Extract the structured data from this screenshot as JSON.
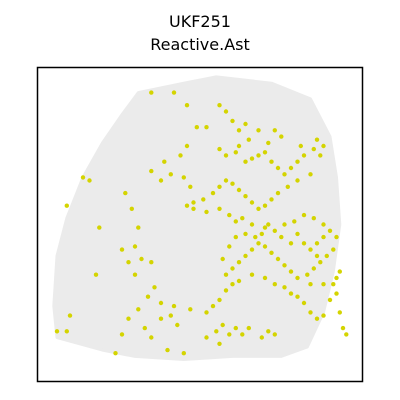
{
  "title_line1": "UKF251",
  "title_line2": "Reactive.Ast",
  "colors": {
    "background_spot": "#ebebeb",
    "highlight_spot": "#d4d400",
    "frame": "#000000"
  },
  "chart_data": {
    "type": "scatter",
    "title": "UKF251\nReactive.Ast",
    "xlabel": "",
    "ylabel": "",
    "xlim": [
      0,
      100
    ],
    "ylim": [
      0,
      100
    ],
    "axes_visible": false,
    "grid": false,
    "legend": "none",
    "background_tissue_polygon": [
      [
        31,
        92
      ],
      [
        45,
        95
      ],
      [
        55,
        97
      ],
      [
        72,
        95
      ],
      [
        84,
        90
      ],
      [
        90,
        78
      ],
      [
        92,
        65
      ],
      [
        93,
        50
      ],
      [
        91,
        35
      ],
      [
        88,
        22
      ],
      [
        83,
        11
      ],
      [
        75,
        8
      ],
      [
        60,
        8
      ],
      [
        45,
        7
      ],
      [
        30,
        8
      ],
      [
        20,
        10
      ],
      [
        6,
        14
      ],
      [
        5,
        24
      ],
      [
        6,
        40
      ],
      [
        9,
        52
      ],
      [
        14,
        65
      ],
      [
        20,
        76
      ],
      [
        26,
        85
      ],
      [
        31,
        92
      ]
    ],
    "series": [
      {
        "name": "",
        "points": [
          [
            35,
            92
          ],
          [
            42,
            92
          ],
          [
            46,
            88
          ],
          [
            56,
            88
          ],
          [
            58,
            86
          ],
          [
            49,
            81
          ],
          [
            52,
            81
          ],
          [
            60,
            83
          ],
          [
            62,
            80
          ],
          [
            64,
            82
          ],
          [
            68,
            80
          ],
          [
            73,
            80
          ],
          [
            75,
            78
          ],
          [
            71,
            76
          ],
          [
            65,
            77
          ],
          [
            62,
            75
          ],
          [
            56,
            74
          ],
          [
            58,
            72
          ],
          [
            61,
            73
          ],
          [
            64,
            70
          ],
          [
            66,
            71
          ],
          [
            68,
            72
          ],
          [
            70,
            73
          ],
          [
            72,
            70
          ],
          [
            74,
            68
          ],
          [
            76,
            66
          ],
          [
            78,
            68
          ],
          [
            80,
            70
          ],
          [
            82,
            72
          ],
          [
            81,
            75
          ],
          [
            85,
            74
          ],
          [
            86,
            77
          ],
          [
            88,
            75
          ],
          [
            87,
            72
          ],
          [
            84,
            66
          ],
          [
            80,
            64
          ],
          [
            77,
            62
          ],
          [
            74,
            60
          ],
          [
            72,
            58
          ],
          [
            70,
            56
          ],
          [
            68,
            55
          ],
          [
            66,
            57
          ],
          [
            64,
            59
          ],
          [
            62,
            61
          ],
          [
            60,
            63
          ],
          [
            58,
            64
          ],
          [
            56,
            62
          ],
          [
            54,
            60
          ],
          [
            51,
            58
          ],
          [
            48,
            57
          ],
          [
            46,
            56
          ],
          [
            47,
            62
          ],
          [
            45,
            65
          ],
          [
            41,
            66
          ],
          [
            38,
            64
          ],
          [
            35,
            67
          ],
          [
            39,
            70
          ],
          [
            44,
            72
          ],
          [
            46,
            75
          ],
          [
            48,
            55
          ],
          [
            52,
            54
          ],
          [
            56,
            55
          ],
          [
            59,
            53
          ],
          [
            61,
            51
          ],
          [
            63,
            52
          ],
          [
            66,
            50
          ],
          [
            70,
            49
          ],
          [
            73,
            48
          ],
          [
            76,
            50
          ],
          [
            79,
            51
          ],
          [
            82,
            53
          ],
          [
            85,
            52
          ],
          [
            88,
            50
          ],
          [
            90,
            48
          ],
          [
            92,
            46
          ],
          [
            91,
            42
          ],
          [
            89,
            40
          ],
          [
            87,
            38
          ],
          [
            85,
            36
          ],
          [
            83,
            34
          ],
          [
            80,
            33
          ],
          [
            78,
            35
          ],
          [
            76,
            37
          ],
          [
            74,
            39
          ],
          [
            72,
            41
          ],
          [
            70,
            43
          ],
          [
            68,
            44
          ],
          [
            66,
            42
          ],
          [
            64,
            40
          ],
          [
            62,
            38
          ],
          [
            60,
            36
          ],
          [
            58,
            34
          ],
          [
            57,
            39
          ],
          [
            59,
            43
          ],
          [
            61,
            46
          ],
          [
            64,
            47
          ],
          [
            67,
            46
          ],
          [
            69,
            47
          ],
          [
            71,
            50
          ],
          [
            75,
            46
          ],
          [
            78,
            44
          ],
          [
            80,
            47
          ],
          [
            82,
            44
          ],
          [
            84,
            42
          ],
          [
            86,
            44
          ],
          [
            88,
            46
          ],
          [
            86,
            40
          ],
          [
            84,
            31
          ],
          [
            88,
            31
          ],
          [
            91,
            31
          ],
          [
            92,
            33
          ],
          [
            93,
            35
          ],
          [
            92,
            28
          ],
          [
            90,
            26
          ],
          [
            88,
            21
          ],
          [
            86,
            20
          ],
          [
            84,
            22
          ],
          [
            82,
            25
          ],
          [
            80,
            27
          ],
          [
            78,
            28
          ],
          [
            76,
            30
          ],
          [
            73,
            31
          ],
          [
            70,
            33
          ],
          [
            66,
            34
          ],
          [
            62,
            32
          ],
          [
            60,
            31
          ],
          [
            58,
            29
          ],
          [
            56,
            26
          ],
          [
            54,
            24
          ],
          [
            52,
            22
          ],
          [
            47,
            23
          ],
          [
            43,
            18
          ],
          [
            41,
            21
          ],
          [
            38,
            25
          ],
          [
            34,
            27
          ],
          [
            31,
            23
          ],
          [
            28,
            20
          ],
          [
            26,
            15
          ],
          [
            26,
            42
          ],
          [
            32,
            39
          ],
          [
            35,
            38
          ],
          [
            18,
            34
          ],
          [
            9,
            56
          ],
          [
            14,
            65
          ],
          [
            16,
            64
          ],
          [
            19,
            49
          ],
          [
            27,
            60
          ],
          [
            29,
            55
          ],
          [
            31,
            49
          ],
          [
            30,
            43
          ],
          [
            6,
            16
          ],
          [
            9,
            16
          ],
          [
            10,
            21
          ],
          [
            24,
            9
          ],
          [
            52,
            14
          ],
          [
            55,
            16
          ],
          [
            57,
            18
          ],
          [
            59,
            15
          ],
          [
            61,
            17
          ],
          [
            63,
            15
          ],
          [
            65,
            17
          ],
          [
            69,
            14
          ],
          [
            71,
            16
          ],
          [
            73,
            15
          ],
          [
            56,
            12
          ],
          [
            45,
            9
          ],
          [
            40,
            10
          ],
          [
            35,
            14
          ],
          [
            33,
            17
          ],
          [
            38,
            20
          ],
          [
            42,
            24
          ],
          [
            36,
            30
          ],
          [
            30,
            34
          ],
          [
            28,
            38
          ],
          [
            93,
            22
          ],
          [
            94,
            17
          ],
          [
            95,
            15
          ]
        ]
      }
    ]
  }
}
